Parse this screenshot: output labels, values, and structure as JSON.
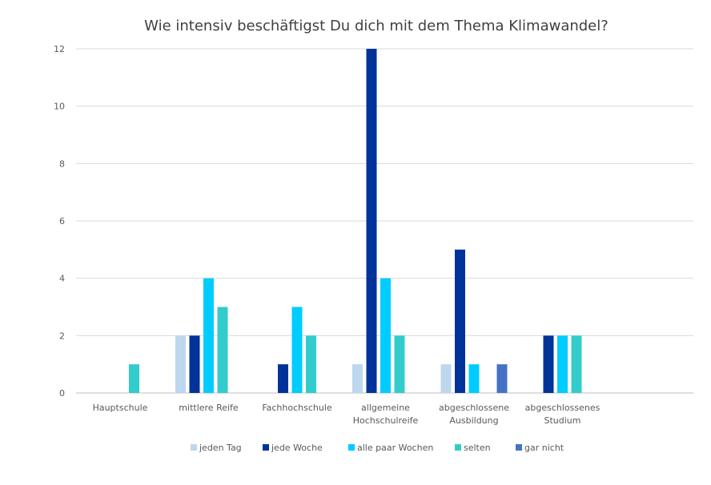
{
  "chart_data": {
    "type": "bar",
    "title": "Wie intensiv beschäftigst Du dich mit dem Thema Klimawandel?",
    "xlabel": "",
    "ylabel": "",
    "ylim": [
      0,
      12
    ],
    "yticks": [
      0,
      2,
      4,
      6,
      8,
      10,
      12
    ],
    "grid": true,
    "legend_position": "bottom",
    "categories": [
      [
        "Hauptschule"
      ],
      [
        "mittlere Reife"
      ],
      [
        "Fachhochschule"
      ],
      [
        "allgemeine",
        "Hochschulreife"
      ],
      [
        "abgeschlossene",
        "Ausbildung"
      ],
      [
        "abgeschlossenes",
        "Studium"
      ]
    ],
    "series": [
      {
        "name": "jeden Tag",
        "color": "#bdd7ee",
        "values": [
          null,
          2,
          null,
          1,
          1,
          null
        ]
      },
      {
        "name": "jede Woche",
        "color": "#003399",
        "values": [
          null,
          2,
          1,
          12,
          5,
          2
        ]
      },
      {
        "name": "alle paar Wochen",
        "color": "#00ccff",
        "values": [
          null,
          4,
          3,
          4,
          1,
          2
        ]
      },
      {
        "name": "selten",
        "color": "#33cccc",
        "values": [
          1,
          3,
          2,
          2,
          null,
          2
        ]
      },
      {
        "name": "gar nicht",
        "color": "#4472c4",
        "values": [
          null,
          null,
          null,
          null,
          1,
          null
        ]
      }
    ]
  }
}
